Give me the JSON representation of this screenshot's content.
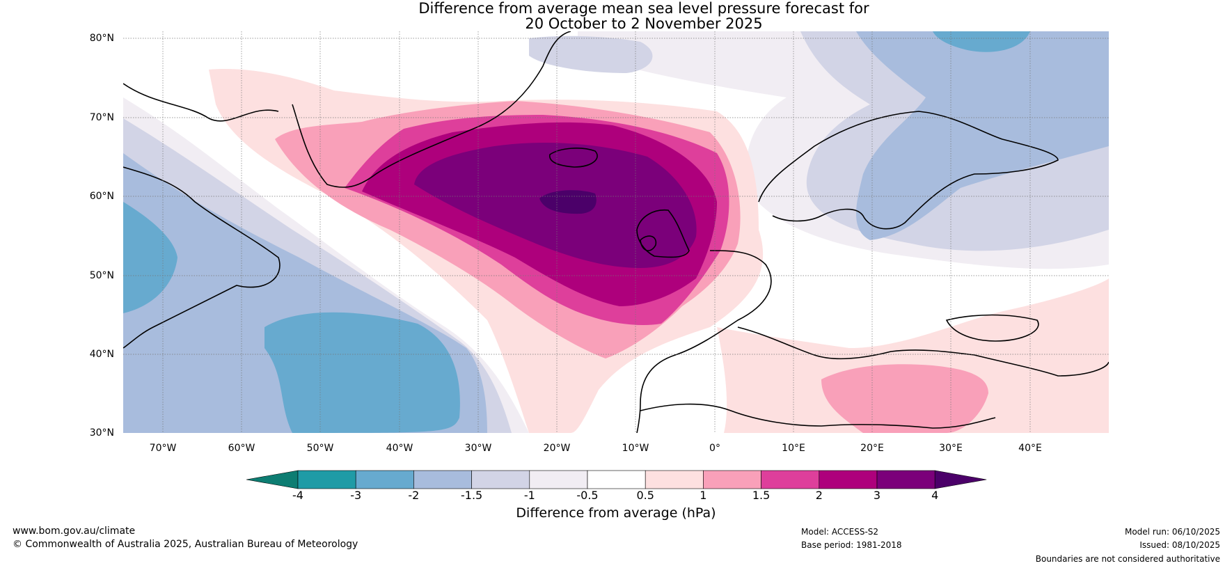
{
  "title": {
    "line1": "Difference from average mean sea level pressure forecast for",
    "line2": "20 October to 2 November 2025"
  },
  "map": {
    "lat_labels": [
      "80°N",
      "70°N",
      "60°N",
      "50°N",
      "40°N",
      "30°N"
    ],
    "lon_labels": [
      "70°W",
      "60°W",
      "50°W",
      "40°W",
      "30°W",
      "20°W",
      "10°W",
      "0°",
      "10°E",
      "20°E",
      "30°E",
      "40°E"
    ],
    "lat_range": [
      30,
      81
    ],
    "lon_range": [
      -75,
      50
    ]
  },
  "colorbar": {
    "label": "Difference from average (hPa)",
    "ticks": [
      "-4",
      "-3",
      "-2",
      "-1.5",
      "-1",
      "-0.5",
      "0.5",
      "1",
      "1.5",
      "2",
      "3",
      "4"
    ],
    "colors": [
      "#0d7d72",
      "#1f9ba6",
      "#67aacf",
      "#a8bcdd",
      "#d2d4e6",
      "#f1edf3",
      "#ffffff",
      "#fde0e0",
      "#f9a0b9",
      "#de3f9b",
      "#ae007c",
      "#7b007a",
      "#4b0069"
    ]
  },
  "footer": {
    "website": "www.bom.gov.au/climate",
    "copyright": "© Commonwealth of Australia 2025, Australian Bureau of Meteorology",
    "model": "Model: ACCESS-S2",
    "base_period": "Base period: 1981-2018",
    "model_run": "Model run: 06/10/2025",
    "issued": "Issued: 08/10/2025",
    "disclaimer": "Boundaries are not considered authoritative"
  }
}
